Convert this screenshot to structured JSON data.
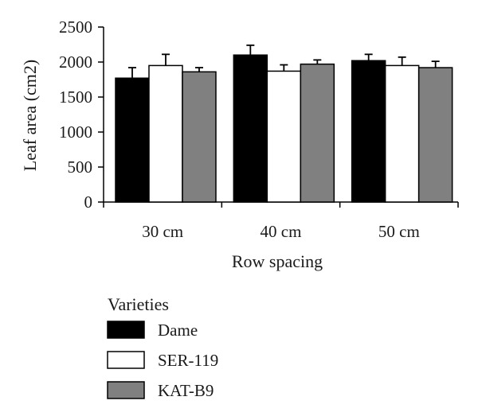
{
  "chart_data": {
    "type": "bar",
    "categories": [
      "30 cm",
      "40 cm",
      "50 cm"
    ],
    "xlabel": "Row spacing",
    "ylabel": "Leaf area (cm2)",
    "ylim": [
      0,
      2500
    ],
    "yticks": [
      "0",
      "500",
      "1000",
      "1500",
      "2000",
      "2500"
    ],
    "grid": false,
    "legend": {
      "title": "Varieties",
      "placement": "bottom-left"
    },
    "series": [
      {
        "name": "Dame",
        "color": "#000000",
        "values": [
          1770,
          2100,
          2020
        ],
        "errors": [
          150,
          140,
          90
        ]
      },
      {
        "name": "SER-119",
        "color": "#ffffff",
        "values": [
          1950,
          1870,
          1950
        ],
        "errors": [
          160,
          90,
          120
        ]
      },
      {
        "name": "KAT-B9",
        "color": "#808080",
        "values": [
          1860,
          1970,
          1920
        ],
        "errors": [
          60,
          60,
          90
        ]
      }
    ]
  }
}
